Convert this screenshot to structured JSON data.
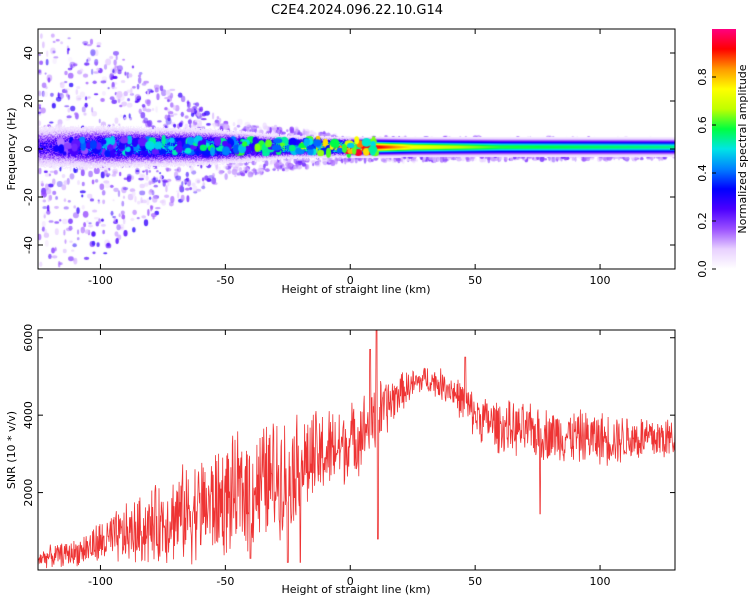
{
  "title": "C2E4.2024.096.22.10.G14",
  "chart_data": [
    {
      "type": "heatmap",
      "name": "spectrogram",
      "xlabel": "Height of straight line (km)",
      "ylabel": "Frequency (Hz)",
      "xlim": [
        -125,
        130
      ],
      "ylim": [
        -50,
        50
      ],
      "xticks": [
        -100,
        -50,
        0,
        50,
        100
      ],
      "yticks": [
        -40,
        -20,
        0,
        20,
        40
      ],
      "colorbar": {
        "label": "Normalized spectral amplitude",
        "range": [
          0,
          1
        ],
        "ticks": [
          0.0,
          0.2,
          0.4,
          0.6,
          0.8
        ],
        "colormap": [
          "#ffffff",
          "#e8d0ff",
          "#9a50ff",
          "#4b00ff",
          "#0000ff",
          "#0080ff",
          "#00e5e5",
          "#00ff40",
          "#c0ff00",
          "#ffff00",
          "#ff9900",
          "#ff0000",
          "#ff0080"
        ]
      },
      "ridge_center_hz": 1,
      "ridge_halfwidth_hz": [
        {
          "x": -115,
          "hz": 6
        },
        {
          "x": -60,
          "hz": 5
        },
        {
          "x": -25,
          "hz": 3
        },
        {
          "x": 0,
          "hz": 2.5
        },
        {
          "x": 130,
          "hz": 2.5
        }
      ],
      "ridge_peak_amplitude": [
        {
          "x": -120,
          "amp": 0.3
        },
        {
          "x": -100,
          "amp": 0.45
        },
        {
          "x": -50,
          "amp": 0.55
        },
        {
          "x": -20,
          "amp": 0.65
        },
        {
          "x": 0,
          "amp": 0.9
        },
        {
          "x": 10,
          "amp": 0.95
        },
        {
          "x": 25,
          "amp": 0.75
        },
        {
          "x": 60,
          "amp": 0.6
        },
        {
          "x": 130,
          "amp": 0.55
        }
      ],
      "scatter_extent_hz": [
        {
          "x": -125,
          "hz": 50
        },
        {
          "x": -100,
          "hz": 45
        },
        {
          "x": -80,
          "hz": 30
        },
        {
          "x": -50,
          "hz": 12
        },
        {
          "x": -20,
          "hz": 8
        },
        {
          "x": 0,
          "hz": 5
        },
        {
          "x": 130,
          "hz": 4
        }
      ]
    },
    {
      "type": "line",
      "name": "snr",
      "xlabel": "Height of straight line (km)",
      "ylabel": "SNR (10 * v/v)",
      "xlim": [
        -125,
        130
      ],
      "ylim": [
        0,
        6200
      ],
      "xticks": [
        -100,
        -50,
        0,
        50,
        100
      ],
      "yticks": [
        2000,
        4000,
        6000
      ],
      "line_color": "#ee3333",
      "series": [
        {
          "envelope": [
            {
              "x": -125,
              "mid": 300,
              "amp": 250
            },
            {
              "x": -110,
              "mid": 450,
              "amp": 350
            },
            {
              "x": -100,
              "mid": 700,
              "amp": 600
            },
            {
              "x": -90,
              "mid": 900,
              "amp": 800
            },
            {
              "x": -80,
              "mid": 1100,
              "amp": 1000
            },
            {
              "x": -70,
              "mid": 1400,
              "amp": 1200
            },
            {
              "x": -60,
              "mid": 1600,
              "amp": 1400
            },
            {
              "x": -50,
              "mid": 1800,
              "amp": 1500
            },
            {
              "x": -40,
              "mid": 2100,
              "amp": 1600
            },
            {
              "x": -30,
              "mid": 2400,
              "amp": 1600
            },
            {
              "x": -20,
              "mid": 2700,
              "amp": 1400
            },
            {
              "x": -10,
              "mid": 3000,
              "amp": 1200
            },
            {
              "x": 0,
              "mid": 3300,
              "amp": 1000
            },
            {
              "x": 10,
              "mid": 3900,
              "amp": 1000
            },
            {
              "x": 20,
              "mid": 4600,
              "amp": 500
            },
            {
              "x": 30,
              "mid": 4950,
              "amp": 350
            },
            {
              "x": 40,
              "mid": 4700,
              "amp": 450
            },
            {
              "x": 50,
              "mid": 4000,
              "amp": 600
            },
            {
              "x": 60,
              "mid": 3700,
              "amp": 700
            },
            {
              "x": 80,
              "mid": 3500,
              "amp": 700
            },
            {
              "x": 100,
              "mid": 3400,
              "amp": 700
            },
            {
              "x": 115,
              "mid": 3400,
              "amp": 650
            },
            {
              "x": 130,
              "mid": 3400,
              "amp": 600
            }
          ],
          "spikes": [
            {
              "x": 10.5,
              "y": 6200
            },
            {
              "x": 11,
              "y": 800
            },
            {
              "x": 46,
              "y": 5500
            },
            {
              "x": 76,
              "y": 1450
            },
            {
              "x": -40,
              "y": 300
            },
            {
              "x": -25,
              "y": 200
            },
            {
              "x": -20,
              "y": 200
            },
            {
              "x": 8,
              "y": 5700
            }
          ]
        }
      ]
    }
  ]
}
